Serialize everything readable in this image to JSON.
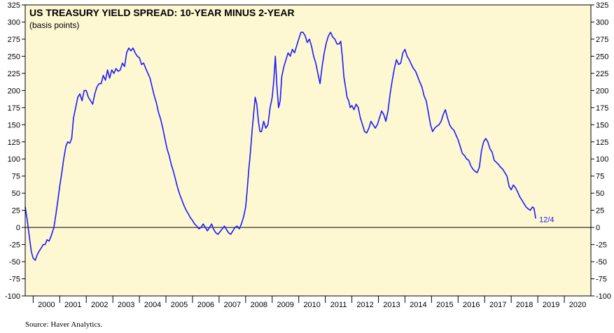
{
  "chart_data": {
    "type": "line",
    "title": "US TREASURY YIELD SPREAD: 10-YEAR MINUS 2-YEAR",
    "subtitle": "(basis points)",
    "xlabel": "",
    "ylabel": "",
    "ylim": [
      -100,
      325
    ],
    "xlim": [
      1999.7,
      2021.0
    ],
    "yticks": [
      -100,
      -75,
      -50,
      -25,
      0,
      25,
      50,
      75,
      100,
      125,
      150,
      175,
      200,
      225,
      250,
      275,
      300,
      325
    ],
    "xtick_labels": [
      "2000",
      "2001",
      "2002",
      "2003",
      "2004",
      "2005",
      "2006",
      "2007",
      "2008",
      "2009",
      "2010",
      "2011",
      "2012",
      "2013",
      "2014",
      "2015",
      "2016",
      "2017",
      "2018",
      "2019",
      "2020"
    ],
    "colors": {
      "background": "#fdf8d2",
      "line": "#1a1aff",
      "zero_line": "#000000"
    },
    "end_label": "12/4",
    "source": "Source: Haver Analytics.",
    "series": [
      {
        "name": "10-Year minus 2-Year",
        "points": [
          [
            1999.7,
            30
          ],
          [
            1999.78,
            10
          ],
          [
            1999.86,
            -15
          ],
          [
            1999.93,
            -35
          ],
          [
            2000.0,
            -45
          ],
          [
            2000.08,
            -48
          ],
          [
            2000.15,
            -40
          ],
          [
            2000.22,
            -35
          ],
          [
            2000.3,
            -30
          ],
          [
            2000.38,
            -25
          ],
          [
            2000.45,
            -25
          ],
          [
            2000.52,
            -18
          ],
          [
            2000.6,
            -20
          ],
          [
            2000.68,
            -12
          ],
          [
            2000.78,
            0
          ],
          [
            2000.86,
            20
          ],
          [
            2000.93,
            40
          ],
          [
            2001.0,
            60
          ],
          [
            2001.08,
            80
          ],
          [
            2001.15,
            100
          ],
          [
            2001.23,
            118
          ],
          [
            2001.3,
            125
          ],
          [
            2001.38,
            123
          ],
          [
            2001.45,
            130
          ],
          [
            2001.52,
            160
          ],
          [
            2001.6,
            175
          ],
          [
            2001.68,
            190
          ],
          [
            2001.76,
            195
          ],
          [
            2001.84,
            185
          ],
          [
            2001.92,
            200
          ],
          [
            2002.0,
            200
          ],
          [
            2002.08,
            190
          ],
          [
            2002.16,
            185
          ],
          [
            2002.24,
            180
          ],
          [
            2002.32,
            195
          ],
          [
            2002.4,
            205
          ],
          [
            2002.48,
            210
          ],
          [
            2002.56,
            210
          ],
          [
            2002.64,
            222
          ],
          [
            2002.72,
            215
          ],
          [
            2002.8,
            230
          ],
          [
            2002.88,
            218
          ],
          [
            2002.96,
            230
          ],
          [
            2003.04,
            225
          ],
          [
            2003.12,
            232
          ],
          [
            2003.2,
            228
          ],
          [
            2003.28,
            230
          ],
          [
            2003.36,
            240
          ],
          [
            2003.44,
            235
          ],
          [
            2003.52,
            255
          ],
          [
            2003.6,
            262
          ],
          [
            2003.68,
            258
          ],
          [
            2003.76,
            262
          ],
          [
            2003.84,
            255
          ],
          [
            2003.92,
            250
          ],
          [
            2004.0,
            248
          ],
          [
            2004.08,
            238
          ],
          [
            2004.16,
            240
          ],
          [
            2004.24,
            232
          ],
          [
            2004.32,
            225
          ],
          [
            2004.4,
            218
          ],
          [
            2004.48,
            205
          ],
          [
            2004.56,
            192
          ],
          [
            2004.64,
            182
          ],
          [
            2004.72,
            168
          ],
          [
            2004.8,
            158
          ],
          [
            2004.88,
            145
          ],
          [
            2004.96,
            130
          ],
          [
            2005.04,
            115
          ],
          [
            2005.12,
            105
          ],
          [
            2005.2,
            92
          ],
          [
            2005.28,
            82
          ],
          [
            2005.36,
            70
          ],
          [
            2005.44,
            58
          ],
          [
            2005.52,
            48
          ],
          [
            2005.6,
            40
          ],
          [
            2005.68,
            32
          ],
          [
            2005.76,
            25
          ],
          [
            2005.84,
            20
          ],
          [
            2005.92,
            14
          ],
          [
            2006.0,
            10
          ],
          [
            2006.08,
            5
          ],
          [
            2006.16,
            2
          ],
          [
            2006.24,
            -2
          ],
          [
            2006.32,
            0
          ],
          [
            2006.4,
            5
          ],
          [
            2006.48,
            0
          ],
          [
            2006.56,
            -5
          ],
          [
            2006.64,
            0
          ],
          [
            2006.72,
            5
          ],
          [
            2006.8,
            -3
          ],
          [
            2006.88,
            -8
          ],
          [
            2006.96,
            -10
          ],
          [
            2007.04,
            -6
          ],
          [
            2007.12,
            -2
          ],
          [
            2007.2,
            2
          ],
          [
            2007.28,
            -3
          ],
          [
            2007.36,
            -8
          ],
          [
            2007.44,
            -10
          ],
          [
            2007.52,
            -5
          ],
          [
            2007.6,
            0
          ],
          [
            2007.68,
            2
          ],
          [
            2007.76,
            -2
          ],
          [
            2007.84,
            5
          ],
          [
            2007.92,
            15
          ],
          [
            2008.0,
            30
          ],
          [
            2008.06,
            55
          ],
          [
            2008.12,
            85
          ],
          [
            2008.18,
            110
          ],
          [
            2008.24,
            140
          ],
          [
            2008.3,
            165
          ],
          [
            2008.36,
            190
          ],
          [
            2008.42,
            180
          ],
          [
            2008.48,
            155
          ],
          [
            2008.54,
            140
          ],
          [
            2008.6,
            140
          ],
          [
            2008.68,
            155
          ],
          [
            2008.76,
            145
          ],
          [
            2008.84,
            150
          ],
          [
            2008.92,
            175
          ],
          [
            2009.0,
            190
          ],
          [
            2009.06,
            215
          ],
          [
            2009.12,
            250
          ],
          [
            2009.18,
            205
          ],
          [
            2009.24,
            175
          ],
          [
            2009.3,
            185
          ],
          [
            2009.36,
            220
          ],
          [
            2009.44,
            235
          ],
          [
            2009.52,
            245
          ],
          [
            2009.6,
            255
          ],
          [
            2009.68,
            250
          ],
          [
            2009.76,
            260
          ],
          [
            2009.84,
            255
          ],
          [
            2009.92,
            265
          ],
          [
            2010.0,
            275
          ],
          [
            2010.08,
            285
          ],
          [
            2010.16,
            285
          ],
          [
            2010.24,
            280
          ],
          [
            2010.32,
            270
          ],
          [
            2010.4,
            275
          ],
          [
            2010.48,
            265
          ],
          [
            2010.56,
            250
          ],
          [
            2010.64,
            240
          ],
          [
            2010.72,
            225
          ],
          [
            2010.8,
            210
          ],
          [
            2010.88,
            235
          ],
          [
            2010.96,
            255
          ],
          [
            2011.04,
            270
          ],
          [
            2011.12,
            280
          ],
          [
            2011.2,
            285
          ],
          [
            2011.28,
            278
          ],
          [
            2011.36,
            275
          ],
          [
            2011.44,
            268
          ],
          [
            2011.52,
            268
          ],
          [
            2011.58,
            272
          ],
          [
            2011.64,
            250
          ],
          [
            2011.7,
            220
          ],
          [
            2011.76,
            205
          ],
          [
            2011.82,
            190
          ],
          [
            2011.88,
            185
          ],
          [
            2011.94,
            175
          ],
          [
            2012.0,
            178
          ],
          [
            2012.08,
            172
          ],
          [
            2012.16,
            180
          ],
          [
            2012.24,
            175
          ],
          [
            2012.32,
            160
          ],
          [
            2012.4,
            150
          ],
          [
            2012.48,
            140
          ],
          [
            2012.56,
            138
          ],
          [
            2012.64,
            145
          ],
          [
            2012.72,
            155
          ],
          [
            2012.8,
            150
          ],
          [
            2012.88,
            145
          ],
          [
            2012.96,
            150
          ],
          [
            2013.04,
            160
          ],
          [
            2013.12,
            170
          ],
          [
            2013.2,
            165
          ],
          [
            2013.28,
            155
          ],
          [
            2013.36,
            170
          ],
          [
            2013.44,
            195
          ],
          [
            2013.52,
            215
          ],
          [
            2013.6,
            232
          ],
          [
            2013.68,
            245
          ],
          [
            2013.76,
            238
          ],
          [
            2013.84,
            240
          ],
          [
            2013.92,
            255
          ],
          [
            2014.0,
            260
          ],
          [
            2014.08,
            250
          ],
          [
            2014.16,
            245
          ],
          [
            2014.24,
            238
          ],
          [
            2014.32,
            232
          ],
          [
            2014.4,
            228
          ],
          [
            2014.48,
            220
          ],
          [
            2014.56,
            212
          ],
          [
            2014.64,
            205
          ],
          [
            2014.72,
            192
          ],
          [
            2014.8,
            185
          ],
          [
            2014.88,
            168
          ],
          [
            2014.96,
            150
          ],
          [
            2015.04,
            140
          ],
          [
            2015.12,
            145
          ],
          [
            2015.2,
            148
          ],
          [
            2015.28,
            150
          ],
          [
            2015.36,
            155
          ],
          [
            2015.44,
            165
          ],
          [
            2015.52,
            172
          ],
          [
            2015.6,
            160
          ],
          [
            2015.68,
            150
          ],
          [
            2015.76,
            145
          ],
          [
            2015.84,
            142
          ],
          [
            2015.92,
            135
          ],
          [
            2016.0,
            128
          ],
          [
            2016.08,
            118
          ],
          [
            2016.16,
            108
          ],
          [
            2016.24,
            105
          ],
          [
            2016.32,
            100
          ],
          [
            2016.4,
            98
          ],
          [
            2016.48,
            90
          ],
          [
            2016.56,
            85
          ],
          [
            2016.64,
            82
          ],
          [
            2016.72,
            80
          ],
          [
            2016.8,
            88
          ],
          [
            2016.88,
            112
          ],
          [
            2016.96,
            125
          ],
          [
            2017.04,
            130
          ],
          [
            2017.12,
            125
          ],
          [
            2017.2,
            115
          ],
          [
            2017.28,
            110
          ],
          [
            2017.36,
            98
          ],
          [
            2017.44,
            95
          ],
          [
            2017.52,
            92
          ],
          [
            2017.6,
            88
          ],
          [
            2017.68,
            85
          ],
          [
            2017.76,
            80
          ],
          [
            2017.84,
            75
          ],
          [
            2017.92,
            60
          ],
          [
            2018.0,
            55
          ],
          [
            2018.08,
            62
          ],
          [
            2018.16,
            58
          ],
          [
            2018.24,
            52
          ],
          [
            2018.32,
            45
          ],
          [
            2018.4,
            40
          ],
          [
            2018.48,
            35
          ],
          [
            2018.56,
            30
          ],
          [
            2018.64,
            27
          ],
          [
            2018.72,
            25
          ],
          [
            2018.8,
            30
          ],
          [
            2018.86,
            28
          ],
          [
            2018.92,
            13
          ]
        ]
      }
    ]
  }
}
